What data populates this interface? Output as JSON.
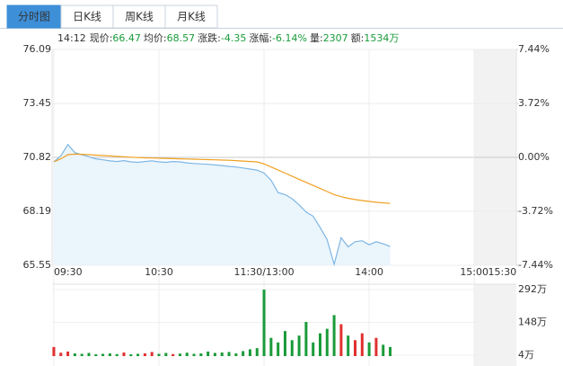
{
  "tabs": [
    "分时图",
    "日K线",
    "周K线",
    "月K线"
  ],
  "quote": {
    "time": "14:12",
    "items": [
      {
        "label": "现价:",
        "value": 66.47
      },
      {
        "label": "均价:",
        "value": 68.57
      },
      {
        "label": "涨跌:",
        "value": -4.35
      },
      {
        "label": "涨幅:",
        "value": "-6.14%"
      },
      {
        "label": "量:",
        "value": 2307
      },
      {
        "label": "额:",
        "value": "1534万"
      }
    ]
  },
  "chart_data": [
    {
      "type": "line",
      "x": [
        0,
        4,
        8,
        12,
        16,
        20,
        24,
        28,
        32,
        36,
        40,
        44,
        48,
        52,
        56,
        60,
        64,
        68,
        72,
        76,
        80,
        84,
        88,
        92,
        96,
        100,
        104,
        108,
        112,
        116,
        120,
        124,
        128,
        132,
        136,
        140,
        144,
        148,
        152,
        156,
        160,
        164,
        168,
        172,
        176,
        180,
        184,
        188,
        192
      ],
      "series": [
        {
          "color": "#7fb6e3",
          "values": [
            70.6,
            70.9,
            71.45,
            71.05,
            70.95,
            70.85,
            70.75,
            70.7,
            70.65,
            70.62,
            70.66,
            70.6,
            70.58,
            70.62,
            70.65,
            70.6,
            70.58,
            70.62,
            70.6,
            70.55,
            70.52,
            70.5,
            70.48,
            70.45,
            70.42,
            70.38,
            70.35,
            70.3,
            70.25,
            70.2,
            70.05,
            69.7,
            69.1,
            69.0,
            68.8,
            68.5,
            68.15,
            67.95,
            67.4,
            66.8,
            65.6,
            66.9,
            66.45,
            66.7,
            66.75,
            66.55,
            66.7,
            66.6,
            66.47
          ]
        },
        {
          "color": "#f0a020",
          "values": [
            70.6,
            70.75,
            70.95,
            70.98,
            70.97,
            70.95,
            70.93,
            70.91,
            70.89,
            70.87,
            70.85,
            70.83,
            70.81,
            70.8,
            70.79,
            70.78,
            70.77,
            70.76,
            70.75,
            70.74,
            70.73,
            70.72,
            70.71,
            70.7,
            70.69,
            70.68,
            70.66,
            70.64,
            70.62,
            70.6,
            70.5,
            70.35,
            70.2,
            70.05,
            69.9,
            69.75,
            69.6,
            69.45,
            69.3,
            69.15,
            69.0,
            68.9,
            68.82,
            68.76,
            68.71,
            68.67,
            68.63,
            68.6,
            68.57
          ]
        }
      ],
      "xlim": [
        -1,
        264
      ],
      "xticks": [
        {
          "value": 0,
          "label": "09:30"
        },
        {
          "value": 60,
          "label": "10:30"
        },
        {
          "value": 120,
          "label": "11:30/13:00"
        },
        {
          "value": 180,
          "label": "14:00"
        },
        {
          "value": 240,
          "label": "15:00"
        },
        {
          "value": 256,
          "label": "15:30"
        }
      ],
      "ylim": [
        65.55,
        76.09
      ],
      "yticks": [
        76.09,
        73.45,
        70.82,
        68.19,
        65.55
      ],
      "y2lim": [
        -7.44,
        7.44
      ],
      "y2ticks": [
        {
          "value": 7.44,
          "label": "7.44%"
        },
        {
          "value": 3.72,
          "label": "3.72%"
        },
        {
          "value": 0,
          "label": "0.00%"
        },
        {
          "value": -3.72,
          "label": "-3.72%"
        },
        {
          "value": -7.44,
          "label": "-7.44%"
        }
      ],
      "grid": true
    },
    {
      "type": "bar",
      "x": [
        0,
        4,
        8,
        12,
        16,
        20,
        24,
        28,
        32,
        36,
        40,
        44,
        48,
        52,
        56,
        60,
        64,
        68,
        72,
        76,
        80,
        84,
        88,
        92,
        96,
        100,
        104,
        108,
        112,
        116,
        120,
        124,
        128,
        132,
        136,
        140,
        144,
        148,
        152,
        156,
        160,
        164,
        168,
        172,
        176,
        180,
        184,
        188,
        192
      ],
      "values": [
        40,
        15,
        20,
        12,
        10,
        14,
        8,
        10,
        12,
        9,
        16,
        8,
        10,
        12,
        18,
        10,
        14,
        9,
        11,
        15,
        10,
        12,
        20,
        14,
        16,
        18,
        12,
        22,
        30,
        35,
        292,
        80,
        60,
        110,
        70,
        90,
        150,
        60,
        100,
        120,
        180,
        140,
        90,
        70,
        100,
        60,
        80,
        50,
        40
      ],
      "colors": [
        "#e03030",
        "#1a9b3a"
      ],
      "xlim": [
        -1,
        264
      ],
      "ylim": [
        0,
        300
      ],
      "yticks": [
        {
          "value": 292,
          "label": "292万"
        },
        {
          "value": 148,
          "label": "148万"
        },
        {
          "value": 4,
          "label": "4万"
        }
      ]
    }
  ]
}
